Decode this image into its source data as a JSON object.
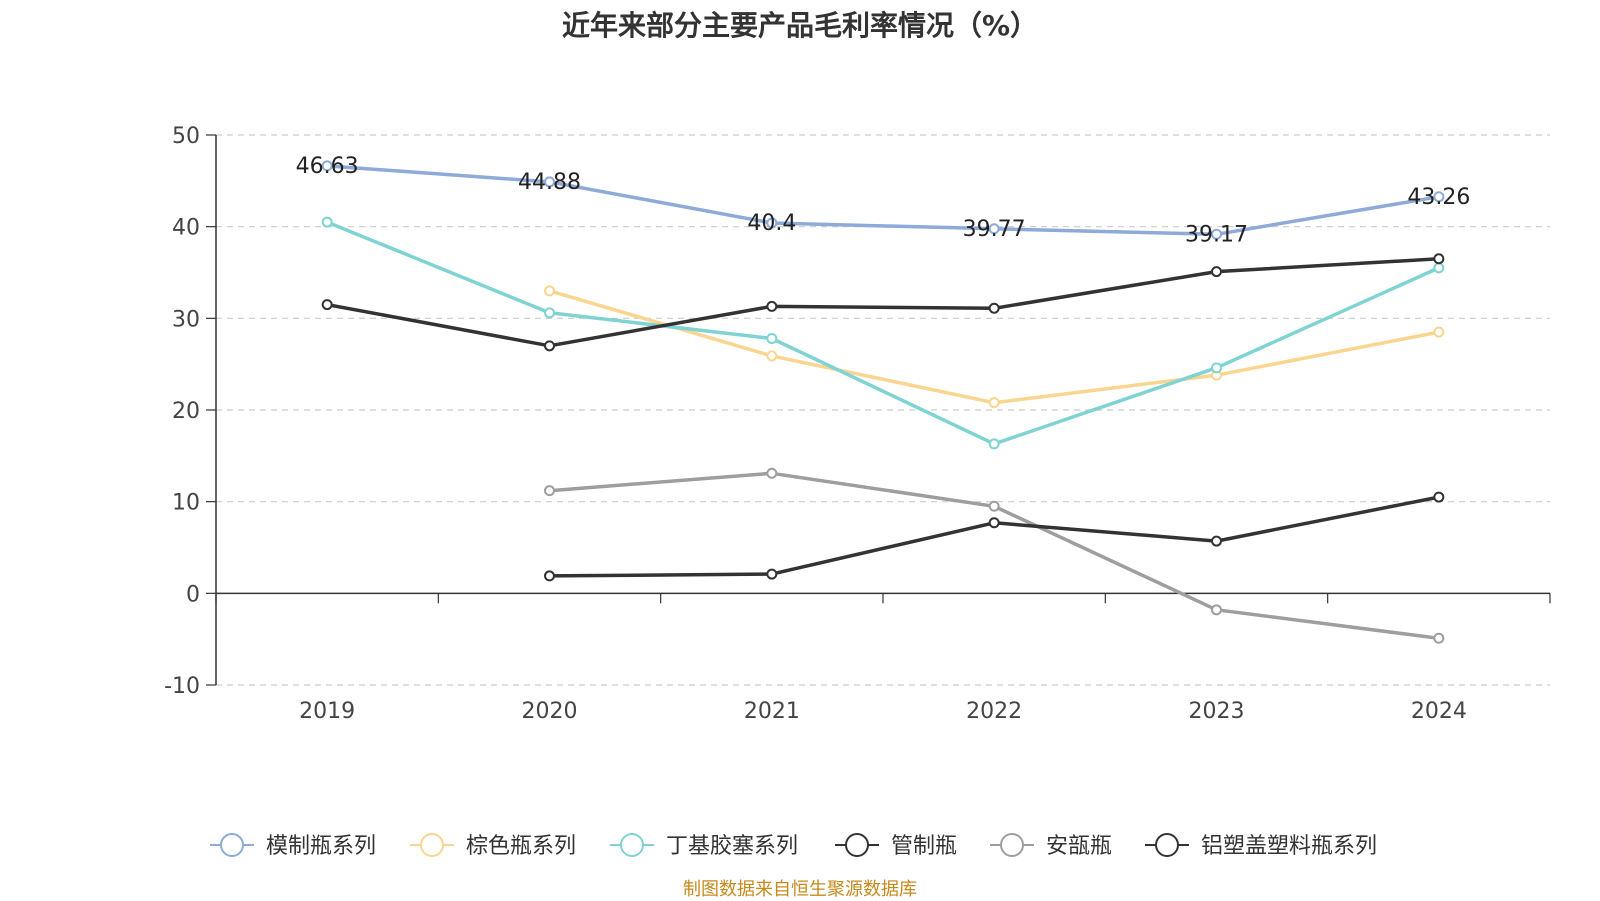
{
  "chart_data": {
    "type": "line",
    "title": "近年来部分主要产品毛利率情况（%）",
    "categories": [
      "2019",
      "2020",
      "2021",
      "2022",
      "2023",
      "2024"
    ],
    "ylim": [
      -10,
      50
    ],
    "yticks": [
      "50",
      "40",
      "30",
      "20",
      "10",
      "0",
      "-10"
    ],
    "grid": true,
    "legend_position": "bottom",
    "series": [
      {
        "name": "模制瓶系列",
        "color": "#8eaad8",
        "values": [
          46.63,
          44.88,
          40.4,
          39.77,
          39.17,
          43.26
        ],
        "labels": [
          "46.63",
          "44.88",
          "40.4",
          "39.77",
          "39.17",
          "43.26"
        ]
      },
      {
        "name": "棕色瓶系列",
        "color": "#fad58f",
        "values": [
          null,
          33.0,
          25.9,
          20.8,
          23.8,
          28.5
        ]
      },
      {
        "name": "丁基胶塞系列",
        "color": "#7fd3d3",
        "values": [
          40.5,
          30.6,
          27.8,
          16.3,
          24.6,
          35.5
        ]
      },
      {
        "name": "管制瓶",
        "color": "#333333",
        "values": [
          31.5,
          27.0,
          31.3,
          31.1,
          35.1,
          36.5
        ]
      },
      {
        "name": "安瓿瓶",
        "color": "#9e9e9e",
        "values": [
          null,
          11.2,
          13.1,
          9.5,
          -1.8,
          -4.9
        ]
      },
      {
        "name": "铝塑盖塑料瓶系列",
        "color": "#333333",
        "values": [
          null,
          1.9,
          2.1,
          7.7,
          5.7,
          10.5
        ]
      }
    ]
  },
  "source": "制图数据来自恒生聚源数据库"
}
